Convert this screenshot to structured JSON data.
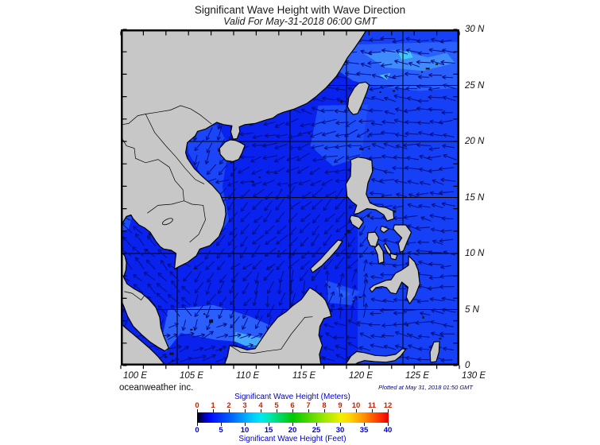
{
  "title": "Significant Wave Height with Wave Direction",
  "subtitle": "Valid For May-31-2018 06:00 GMT",
  "credit": "oceanweather inc.",
  "plotted_at": "Plotted at May 31, 2018 01:50 GMT",
  "axes": {
    "lon": {
      "min": 100,
      "max": 130,
      "grid_step": 5,
      "tick_step": 2,
      "ticks": [
        {
          "v": 100,
          "label": "100 E"
        },
        {
          "v": 105,
          "label": "105 E"
        },
        {
          "v": 110,
          "label": "110 E"
        },
        {
          "v": 115,
          "label": "115 E"
        },
        {
          "v": 120,
          "label": "120 E"
        },
        {
          "v": 125,
          "label": "125 E"
        },
        {
          "v": 130,
          "label": "130 E"
        }
      ]
    },
    "lat": {
      "min": 0,
      "max": 30,
      "grid_step": 5,
      "tick_step": 2,
      "ticks": [
        {
          "v": 30,
          "label": "30 N"
        },
        {
          "v": 25,
          "label": "25 N"
        },
        {
          "v": 20,
          "label": "20 N"
        },
        {
          "v": 15,
          "label": "15 N"
        },
        {
          "v": 10,
          "label": "10 N"
        },
        {
          "v": 5,
          "label": "5 N"
        },
        {
          "v": 0,
          "label": "0"
        }
      ]
    }
  },
  "colorbar": {
    "title_meters": "Significant Wave Height (Meters)",
    "title_feet": "Significant Wave Height (Feet)",
    "meters_values": [
      0,
      1,
      2,
      3,
      4,
      5,
      6,
      7,
      8,
      9,
      10,
      11,
      12
    ],
    "feet_values": [
      0,
      5,
      10,
      15,
      20,
      25,
      30,
      35,
      40
    ],
    "meters_label_color": "#cc2200",
    "feet_label_color": "#0000cc",
    "title_color": "#0000cc",
    "gradient_stops": [
      [
        0,
        "#000000"
      ],
      [
        0.018,
        "#00004d"
      ],
      [
        0.04,
        "#0000b4"
      ],
      [
        0.07,
        "#0008ff"
      ],
      [
        0.083,
        "#0018ff"
      ],
      [
        0.125,
        "#0038ff"
      ],
      [
        0.167,
        "#005aff"
      ],
      [
        0.21,
        "#0080ff"
      ],
      [
        0.25,
        "#00a8ff"
      ],
      [
        0.292,
        "#00ccff"
      ],
      [
        0.333,
        "#00e8f0"
      ],
      [
        0.375,
        "#00e8b4"
      ],
      [
        0.417,
        "#00dc78"
      ],
      [
        0.458,
        "#00d23c"
      ],
      [
        0.5,
        "#00c800"
      ],
      [
        0.583,
        "#50d800"
      ],
      [
        0.667,
        "#a0e800"
      ],
      [
        0.75,
        "#f0f000"
      ],
      [
        0.792,
        "#ffd800"
      ],
      [
        0.833,
        "#ffb400"
      ],
      [
        0.875,
        "#ff8c00"
      ],
      [
        0.917,
        "#ff5a00"
      ],
      [
        0.958,
        "#ff2d00"
      ],
      [
        1,
        "#e60000"
      ]
    ]
  },
  "map_style": {
    "sea": "#0a22ee",
    "pacific_sea": "#1540f5",
    "land": "#c7c7c7",
    "coast": "#000000",
    "grid": "#000000",
    "arrow": "#000d85",
    "frame": "#000000"
  }
}
